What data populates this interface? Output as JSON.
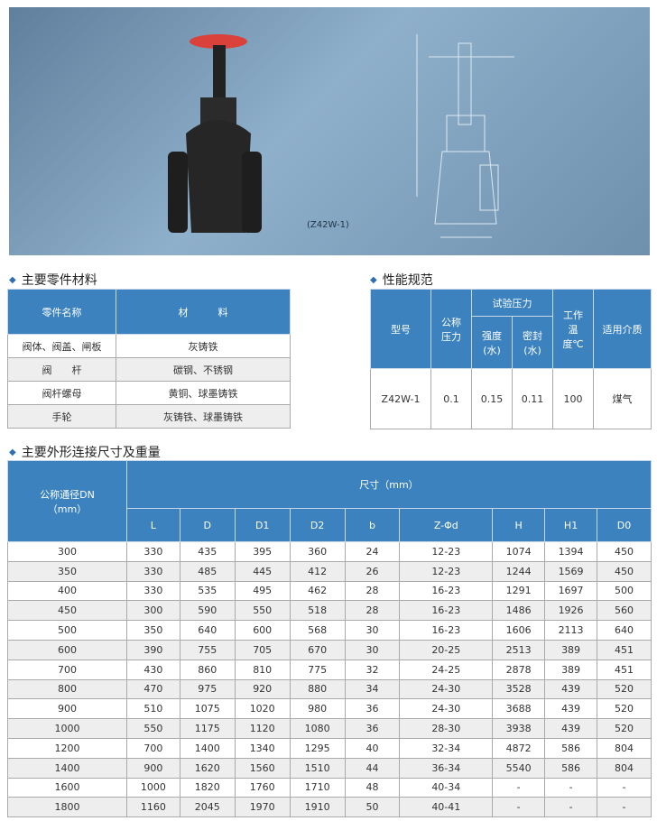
{
  "photo": {
    "caption": "(Z42W-1)",
    "icons": [
      "gate-valve-photo",
      "valve-technical-drawing"
    ]
  },
  "materials": {
    "title": "主要零件材料",
    "headers": [
      "零件名称",
      "材　　　料"
    ],
    "rows": [
      [
        "阀体、阀盖、闸板",
        "灰铸铁"
      ],
      [
        "阀　　杆",
        "碳钢、不锈钢"
      ],
      [
        "阀杆螺母",
        "黄铜、球墨铸铁"
      ],
      [
        "手轮",
        "灰铸铁、球墨铸铁"
      ]
    ]
  },
  "performance": {
    "title": "性能规范",
    "headers": {
      "model": "型号",
      "nominal": "公称压力",
      "test": "试验压力",
      "strength": "强度(水)",
      "seal": "密封(水)",
      "temp": "工作温度℃",
      "medium": "适用介质"
    },
    "row": [
      "Z42W-1",
      "0.1",
      "0.15",
      "0.11",
      "100",
      "煤气"
    ]
  },
  "dimensions": {
    "title": "主要外形连接尺寸及重量",
    "dn_header": "公称通径DN（mm）",
    "size_header": "尺寸（mm）",
    "columns": [
      "L",
      "D",
      "D1",
      "D2",
      "b",
      "Z-Φd",
      "H",
      "H1",
      "D0"
    ],
    "rows": [
      [
        "300",
        "330",
        "435",
        "395",
        "360",
        "24",
        "12-23",
        "1074",
        "1394",
        "450"
      ],
      [
        "350",
        "330",
        "485",
        "445",
        "412",
        "26",
        "12-23",
        "1244",
        "1569",
        "450"
      ],
      [
        "400",
        "330",
        "535",
        "495",
        "462",
        "28",
        "16-23",
        "1291",
        "1697",
        "500"
      ],
      [
        "450",
        "300",
        "590",
        "550",
        "518",
        "28",
        "16-23",
        "1486",
        "1926",
        "560"
      ],
      [
        "500",
        "350",
        "640",
        "600",
        "568",
        "30",
        "16-23",
        "1606",
        "2113",
        "640"
      ],
      [
        "600",
        "390",
        "755",
        "705",
        "670",
        "30",
        "20-25",
        "2513",
        "389",
        "451"
      ],
      [
        "700",
        "430",
        "860",
        "810",
        "775",
        "32",
        "24-25",
        "2878",
        "389",
        "451"
      ],
      [
        "800",
        "470",
        "975",
        "920",
        "880",
        "34",
        "24-30",
        "3528",
        "439",
        "520"
      ],
      [
        "900",
        "510",
        "1075",
        "1020",
        "980",
        "36",
        "24-30",
        "3688",
        "439",
        "520"
      ],
      [
        "1000",
        "550",
        "1175",
        "1120",
        "1080",
        "36",
        "28-30",
        "3938",
        "439",
        "520"
      ],
      [
        "1200",
        "700",
        "1400",
        "1340",
        "1295",
        "40",
        "32-34",
        "4872",
        "586",
        "804"
      ],
      [
        "1400",
        "900",
        "1620",
        "1560",
        "1510",
        "44",
        "36-34",
        "5540",
        "586",
        "804"
      ],
      [
        "1600",
        "1000",
        "1820",
        "1760",
        "1710",
        "48",
        "40-34",
        "-",
        "-",
        "-"
      ],
      [
        "1800",
        "1160",
        "2045",
        "1970",
        "1910",
        "50",
        "40-41",
        "-",
        "-",
        "-"
      ]
    ]
  },
  "colors": {
    "header": "#3b82bf",
    "alt_row": "#eeeeee",
    "handwheel": "#d9413a"
  }
}
